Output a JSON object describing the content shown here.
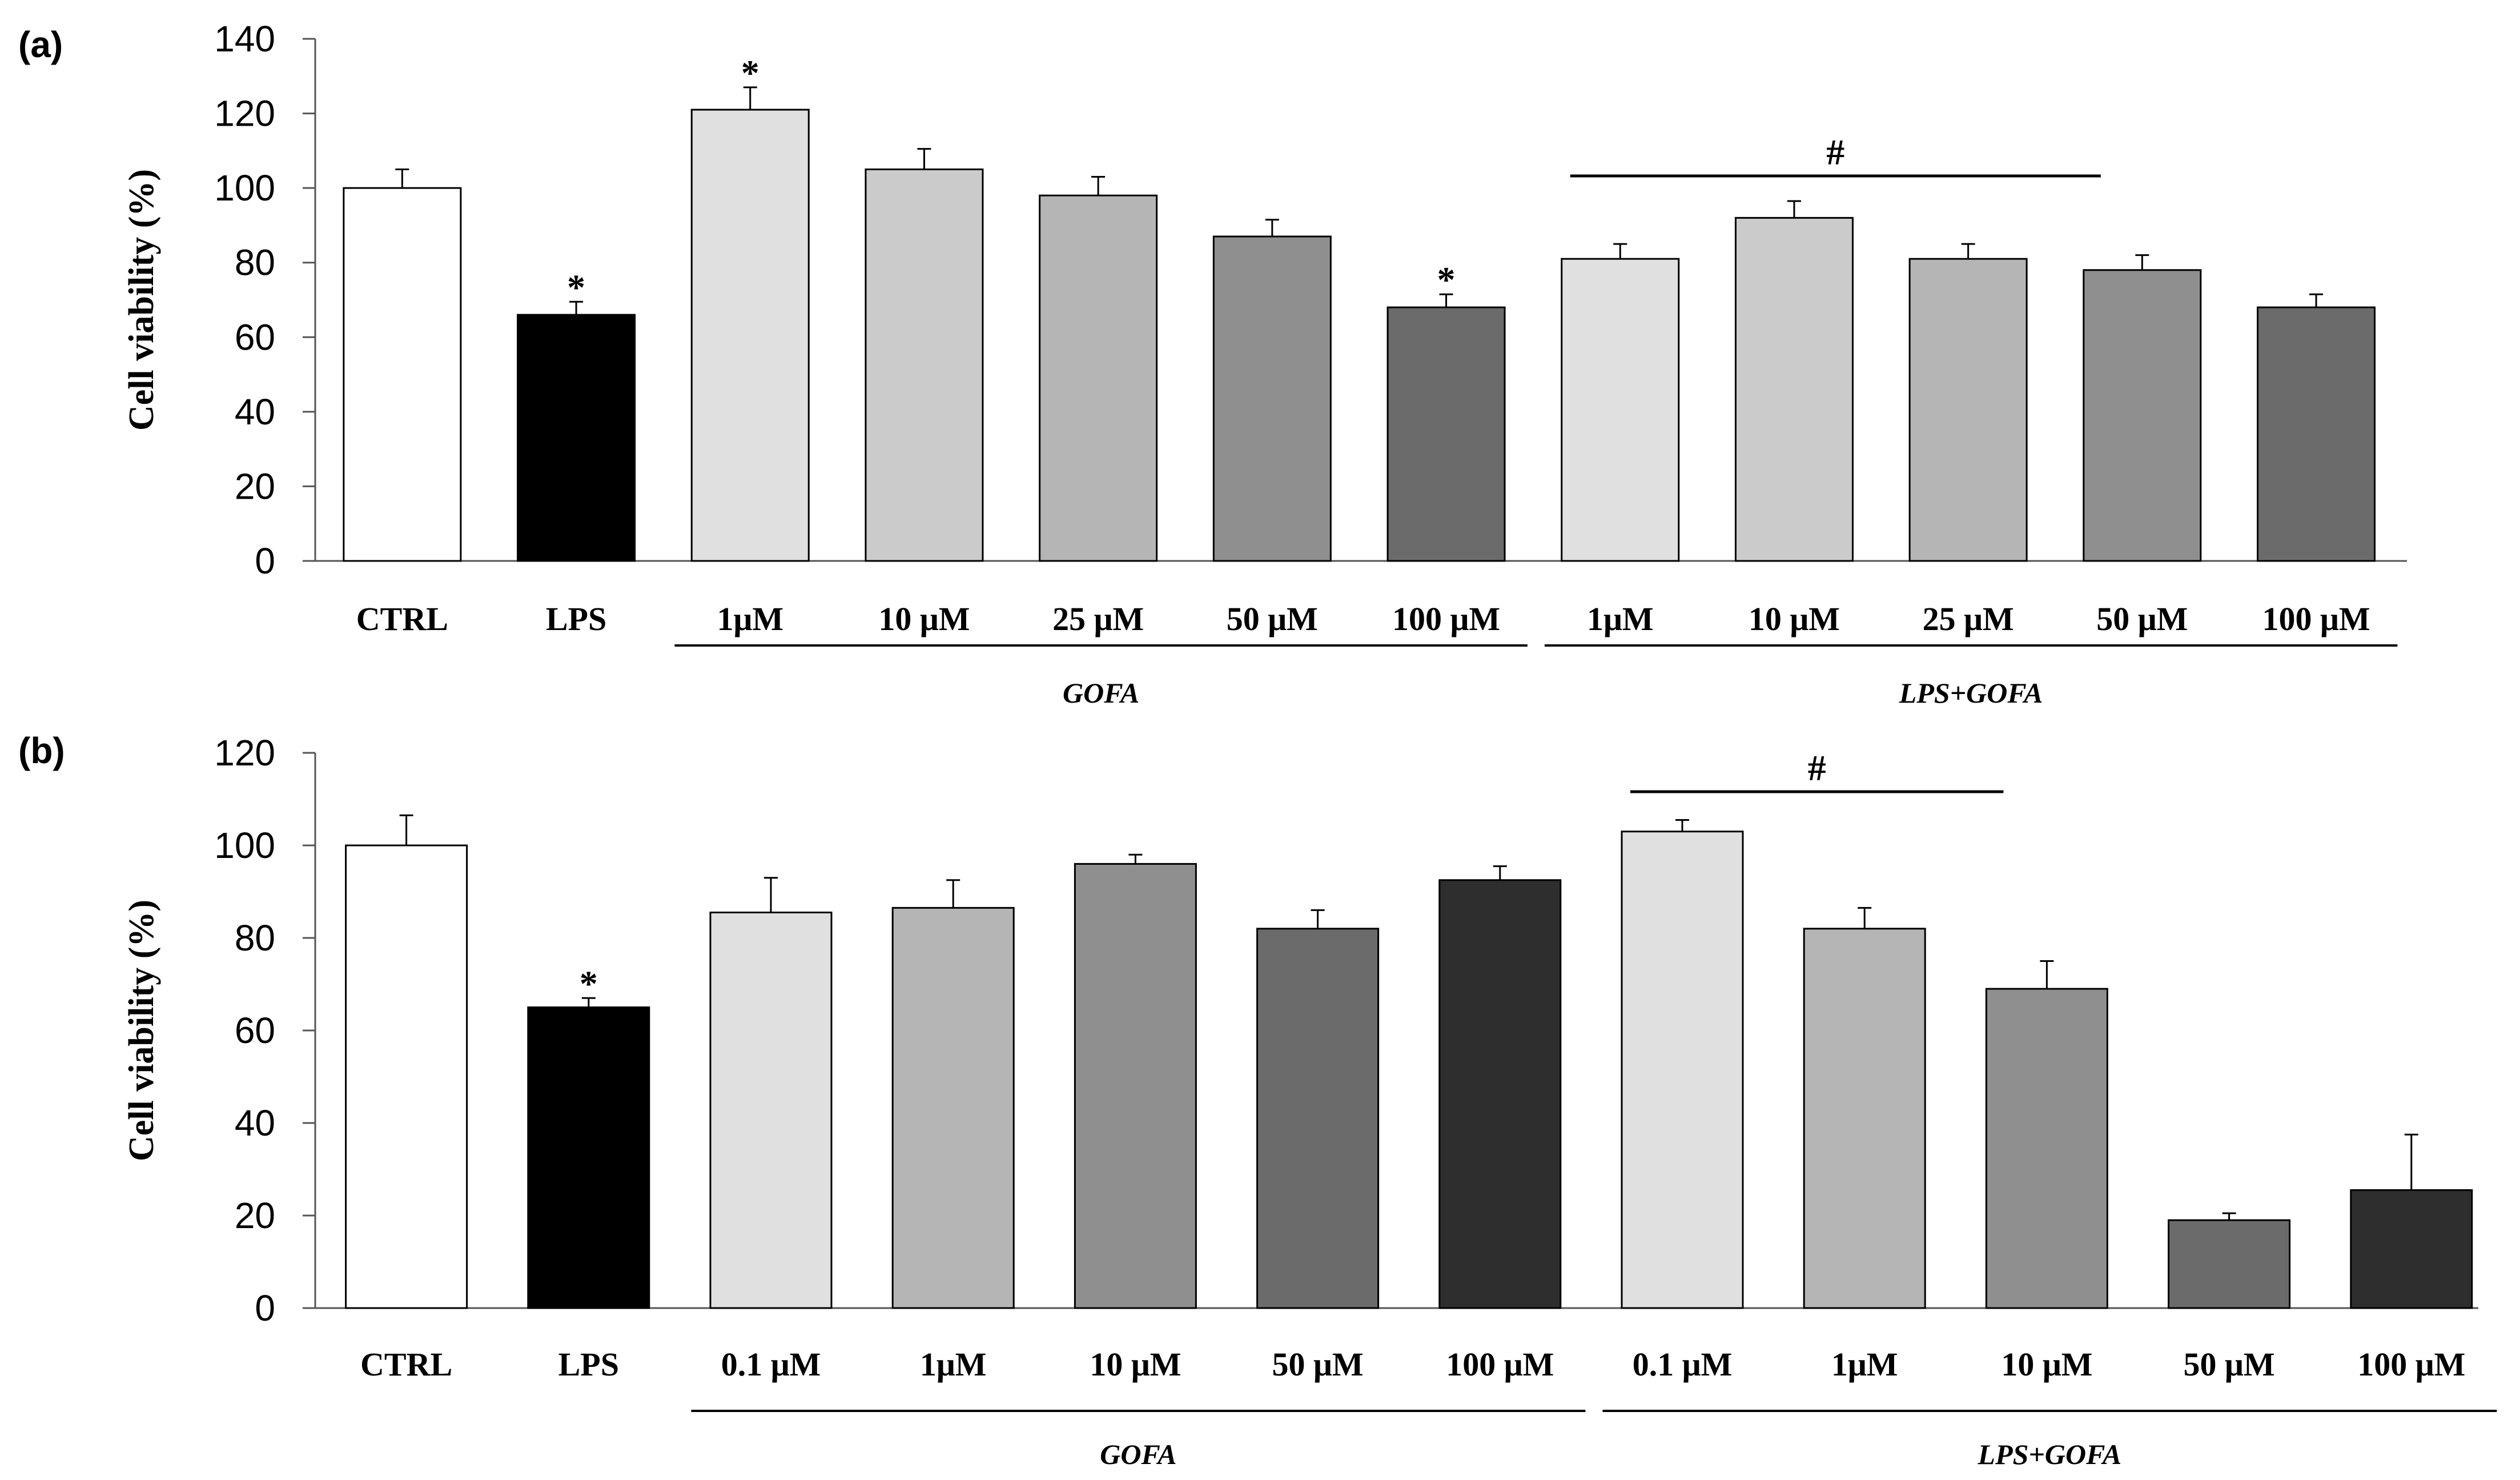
{
  "chart_data": [
    {
      "panel": "(a)",
      "type": "bar",
      "ylabel": "Cell viability (%)",
      "ylim": [
        0,
        140
      ],
      "yticks": [
        0,
        20,
        40,
        60,
        80,
        100,
        120,
        140
      ],
      "categories": [
        "CTRL",
        "LPS",
        "1μM",
        "10 μM",
        "25 μM",
        "50 μM",
        "100 μM",
        "1μM",
        "10 μM",
        "25 μM",
        "50 μM",
        "100 μM"
      ],
      "values": [
        100,
        66,
        121,
        105,
        98,
        87,
        68,
        81,
        92,
        81,
        78,
        68
      ],
      "errors": [
        5,
        3.5,
        6,
        5.5,
        5,
        4.5,
        3.5,
        4,
        4.5,
        4,
        4,
        3.5
      ],
      "colors": [
        "#ffffff",
        "#000000",
        "#e0e0e0",
        "#cbcbcb",
        "#b5b5b5",
        "#8f8f8f",
        "#6b6b6b",
        "#e0e0e0",
        "#cbcbcb",
        "#b5b5b5",
        "#8f8f8f",
        "#6b6b6b"
      ],
      "asterisks": [
        1,
        2,
        6
      ],
      "asterisk_symbol": "*",
      "groups": [
        {
          "label": "GOFA",
          "start": 2,
          "end": 6
        },
        {
          "label": "LPS+GOFA",
          "start": 7,
          "end": 11
        }
      ],
      "significance": {
        "symbol": "#",
        "start": 7,
        "end": 10
      }
    },
    {
      "panel": "(b)",
      "type": "bar",
      "ylabel": "Cell viability (%)",
      "ylim": [
        0,
        120
      ],
      "yticks": [
        0,
        20,
        40,
        60,
        80,
        100,
        120
      ],
      "categories": [
        "CTRL",
        "LPS",
        "0.1 μM",
        "1μM",
        "10 μM",
        "50 μM",
        "100 μM",
        "0.1 μM",
        "1μM",
        "10 μM",
        "50 μM",
        "100 μM"
      ],
      "values": [
        100,
        65,
        85.5,
        86.5,
        96,
        82,
        92.5,
        103,
        82,
        69,
        19,
        25.5
      ],
      "errors": [
        6.5,
        2,
        7.5,
        6,
        2,
        4,
        3,
        2.5,
        4.5,
        6,
        1.5,
        12
      ],
      "colors": [
        "#ffffff",
        "#000000",
        "#e0e0e0",
        "#b5b5b5",
        "#8f8f8f",
        "#6b6b6b",
        "#2e2e2e",
        "#e0e0e0",
        "#b5b5b5",
        "#8f8f8f",
        "#6b6b6b",
        "#2e2e2e"
      ],
      "asterisks": [
        1
      ],
      "asterisk_symbol": "*",
      "groups": [
        {
          "label": "GOFA",
          "start": 2,
          "end": 6
        },
        {
          "label": "LPS+GOFA",
          "start": 7,
          "end": 11
        }
      ],
      "significance": {
        "symbol": "#",
        "start": 7,
        "end": 9
      }
    }
  ]
}
